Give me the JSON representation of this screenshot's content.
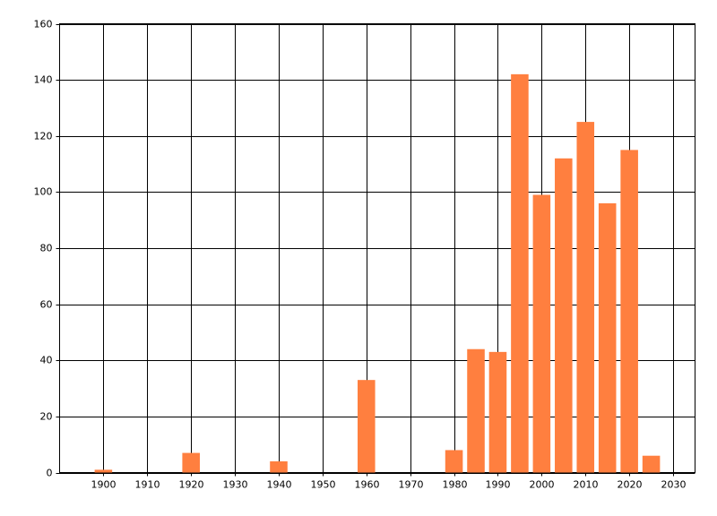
{
  "chart_data": {
    "type": "bar",
    "x": [
      1900,
      1920,
      1940,
      1960,
      1980,
      1985,
      1990,
      1995,
      2000,
      2005,
      2010,
      2015,
      2020,
      2025
    ],
    "values": [
      1,
      7,
      4,
      33,
      8,
      44,
      43,
      142,
      99,
      112,
      125,
      96,
      115,
      6
    ],
    "color": "#ff7f3f",
    "xlim": [
      1890,
      2035
    ],
    "xticks": [
      1900,
      1910,
      1920,
      1930,
      1940,
      1950,
      1960,
      1970,
      1980,
      1990,
      2000,
      2010,
      2020,
      2030
    ],
    "ylim": [
      0,
      160
    ],
    "yticks": [
      0,
      20,
      40,
      60,
      80,
      100,
      120,
      140,
      160
    ],
    "grid": true
  }
}
